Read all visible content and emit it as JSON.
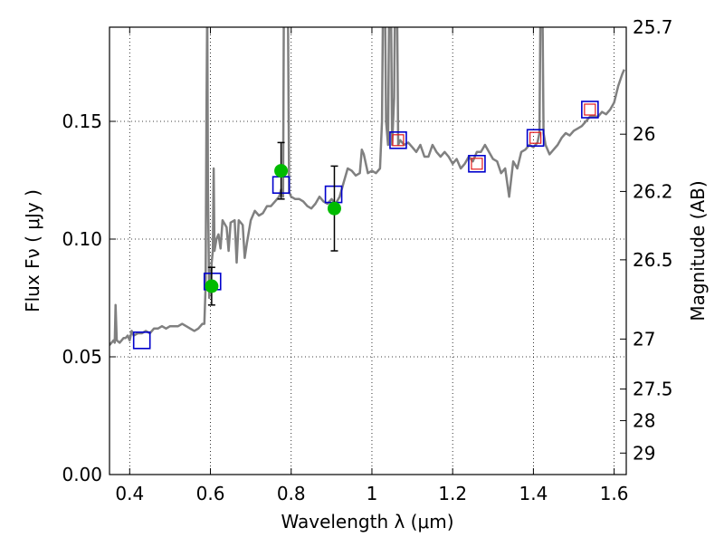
{
  "chart_data": {
    "type": "line",
    "xlabel": "Wavelength  λ (μm)",
    "ylabel": "Flux  Fν  ( μJy )",
    "y2label": "Magnitude (AB)",
    "xlim": [
      0.35,
      1.63
    ],
    "ylim": [
      0.0,
      0.19
    ],
    "xticks": [
      0.4,
      0.6,
      0.8,
      1.0,
      1.2,
      1.4,
      1.6
    ],
    "xtick_labels": [
      "0.4",
      "0.6",
      "0.8",
      "1",
      "1.2",
      "1.4",
      "1.6"
    ],
    "yticks": [
      0.0,
      0.05,
      0.1,
      0.15
    ],
    "ytick_labels": [
      "0.00",
      "0.05",
      "0.10",
      "0.15"
    ],
    "y2ticks": [
      {
        "label": "25.7",
        "mag": 25.7
      },
      {
        "label": "26",
        "mag": 26.0
      },
      {
        "label": "26.2",
        "mag": 26.2
      },
      {
        "label": "26.5",
        "mag": 26.5
      },
      {
        "label": "27",
        "mag": 27.0
      },
      {
        "label": "27.5",
        "mag": 27.5
      },
      {
        "label": "28",
        "mag": 28.0
      },
      {
        "label": "29",
        "mag": 29.0
      }
    ],
    "grid": true,
    "colors": {
      "spectrum": "#808080",
      "model_box": "#0000cc",
      "inner_box": "#e31a1c",
      "observed_point": "#00bb00",
      "errorbar": "#000000"
    },
    "series": [
      {
        "kind": "spectrum",
        "points": [
          [
            0.35,
            0.055
          ],
          [
            0.36,
            0.057
          ],
          [
            0.363,
            0.056
          ],
          [
            0.365,
            0.072
          ],
          [
            0.368,
            0.057
          ],
          [
            0.375,
            0.056
          ],
          [
            0.385,
            0.058
          ],
          [
            0.39,
            0.058
          ],
          [
            0.395,
            0.059
          ],
          [
            0.4,
            0.057
          ],
          [
            0.405,
            0.061
          ],
          [
            0.41,
            0.059
          ],
          [
            0.42,
            0.06
          ],
          [
            0.43,
            0.06
          ],
          [
            0.44,
            0.061
          ],
          [
            0.45,
            0.06
          ],
          [
            0.46,
            0.062
          ],
          [
            0.47,
            0.062
          ],
          [
            0.48,
            0.063
          ],
          [
            0.49,
            0.062
          ],
          [
            0.5,
            0.063
          ],
          [
            0.51,
            0.063
          ],
          [
            0.52,
            0.063
          ],
          [
            0.53,
            0.064
          ],
          [
            0.54,
            0.063
          ],
          [
            0.55,
            0.062
          ],
          [
            0.56,
            0.061
          ],
          [
            0.57,
            0.062
          ],
          [
            0.575,
            0.063
          ],
          [
            0.58,
            0.064
          ],
          [
            0.585,
            0.064
          ],
          [
            0.588,
            0.08
          ],
          [
            0.59,
            0.15
          ],
          [
            0.592,
            0.2
          ],
          [
            0.594,
            0.12
          ],
          [
            0.597,
            0.075
          ],
          [
            0.6,
            0.08
          ],
          [
            0.603,
            0.09
          ],
          [
            0.606,
            0.095
          ],
          [
            0.608,
            0.13
          ],
          [
            0.61,
            0.095
          ],
          [
            0.615,
            0.1
          ],
          [
            0.62,
            0.102
          ],
          [
            0.625,
            0.096
          ],
          [
            0.63,
            0.108
          ],
          [
            0.64,
            0.105
          ],
          [
            0.645,
            0.095
          ],
          [
            0.65,
            0.107
          ],
          [
            0.66,
            0.108
          ],
          [
            0.665,
            0.09
          ],
          [
            0.67,
            0.108
          ],
          [
            0.68,
            0.106
          ],
          [
            0.685,
            0.092
          ],
          [
            0.69,
            0.098
          ],
          [
            0.7,
            0.108
          ],
          [
            0.71,
            0.112
          ],
          [
            0.72,
            0.11
          ],
          [
            0.73,
            0.111
          ],
          [
            0.74,
            0.114
          ],
          [
            0.75,
            0.114
          ],
          [
            0.76,
            0.116
          ],
          [
            0.77,
            0.118
          ],
          [
            0.775,
            0.121
          ],
          [
            0.78,
            0.118
          ],
          [
            0.783,
            0.25
          ],
          [
            0.786,
            0.25
          ],
          [
            0.788,
            0.25
          ],
          [
            0.79,
            0.25
          ],
          [
            0.795,
            0.12
          ],
          [
            0.8,
            0.118
          ],
          [
            0.81,
            0.117
          ],
          [
            0.82,
            0.117
          ],
          [
            0.83,
            0.116
          ],
          [
            0.84,
            0.114
          ],
          [
            0.85,
            0.113
          ],
          [
            0.86,
            0.115
          ],
          [
            0.87,
            0.118
          ],
          [
            0.88,
            0.116
          ],
          [
            0.89,
            0.115
          ],
          [
            0.9,
            0.117
          ],
          [
            0.91,
            0.115
          ],
          [
            0.92,
            0.118
          ],
          [
            0.93,
            0.124
          ],
          [
            0.94,
            0.13
          ],
          [
            0.95,
            0.129
          ],
          [
            0.96,
            0.127
          ],
          [
            0.97,
            0.128
          ],
          [
            0.975,
            0.138
          ],
          [
            0.98,
            0.136
          ],
          [
            0.99,
            0.128
          ],
          [
            1.0,
            0.129
          ],
          [
            1.01,
            0.128
          ],
          [
            1.02,
            0.13
          ],
          [
            1.025,
            0.15
          ],
          [
            1.03,
            0.25
          ],
          [
            1.035,
            0.15
          ],
          [
            1.04,
            0.14
          ],
          [
            1.045,
            0.25
          ],
          [
            1.05,
            0.14
          ],
          [
            1.055,
            0.16
          ],
          [
            1.06,
            0.25
          ],
          [
            1.065,
            0.14
          ],
          [
            1.07,
            0.142
          ],
          [
            1.08,
            0.14
          ],
          [
            1.09,
            0.141
          ],
          [
            1.1,
            0.139
          ],
          [
            1.11,
            0.137
          ],
          [
            1.12,
            0.14
          ],
          [
            1.13,
            0.135
          ],
          [
            1.14,
            0.135
          ],
          [
            1.15,
            0.14
          ],
          [
            1.16,
            0.137
          ],
          [
            1.17,
            0.135
          ],
          [
            1.18,
            0.137
          ],
          [
            1.19,
            0.135
          ],
          [
            1.2,
            0.132
          ],
          [
            1.21,
            0.134
          ],
          [
            1.22,
            0.13
          ],
          [
            1.23,
            0.132
          ],
          [
            1.24,
            0.135
          ],
          [
            1.25,
            0.133
          ],
          [
            1.26,
            0.137
          ],
          [
            1.27,
            0.137
          ],
          [
            1.28,
            0.14
          ],
          [
            1.29,
            0.137
          ],
          [
            1.3,
            0.134
          ],
          [
            1.31,
            0.133
          ],
          [
            1.32,
            0.128
          ],
          [
            1.33,
            0.13
          ],
          [
            1.34,
            0.118
          ],
          [
            1.35,
            0.133
          ],
          [
            1.36,
            0.13
          ],
          [
            1.37,
            0.137
          ],
          [
            1.38,
            0.138
          ],
          [
            1.39,
            0.14
          ],
          [
            1.4,
            0.139
          ],
          [
            1.41,
            0.141
          ],
          [
            1.415,
            0.145
          ],
          [
            1.42,
            0.25
          ],
          [
            1.425,
            0.145
          ],
          [
            1.43,
            0.14
          ],
          [
            1.44,
            0.136
          ],
          [
            1.45,
            0.138
          ],
          [
            1.46,
            0.14
          ],
          [
            1.47,
            0.143
          ],
          [
            1.48,
            0.145
          ],
          [
            1.49,
            0.144
          ],
          [
            1.5,
            0.146
          ],
          [
            1.51,
            0.147
          ],
          [
            1.52,
            0.148
          ],
          [
            1.53,
            0.15
          ],
          [
            1.54,
            0.152
          ],
          [
            1.55,
            0.152
          ],
          [
            1.56,
            0.152
          ],
          [
            1.57,
            0.154
          ],
          [
            1.58,
            0.153
          ],
          [
            1.59,
            0.155
          ],
          [
            1.6,
            0.158
          ],
          [
            1.61,
            0.165
          ],
          [
            1.62,
            0.17
          ],
          [
            1.625,
            0.172
          ]
        ]
      },
      {
        "kind": "model_photometry",
        "points": [
          {
            "x": 0.43,
            "y": 0.057,
            "inner": false
          },
          {
            "x": 0.605,
            "y": 0.082,
            "inner": false
          },
          {
            "x": 0.775,
            "y": 0.123,
            "inner": false
          },
          {
            "x": 0.905,
            "y": 0.119,
            "inner": false
          },
          {
            "x": 1.065,
            "y": 0.142,
            "inner": true
          },
          {
            "x": 1.26,
            "y": 0.132,
            "inner": true
          },
          {
            "x": 1.405,
            "y": 0.143,
            "inner": true
          },
          {
            "x": 1.54,
            "y": 0.155,
            "inner": true
          }
        ]
      },
      {
        "kind": "observed_photometry",
        "points": [
          {
            "x": 0.603,
            "y": 0.08,
            "yerr": 0.008
          },
          {
            "x": 0.775,
            "y": 0.129,
            "yerr": 0.012
          },
          {
            "x": 0.907,
            "y": 0.113,
            "yerr": 0.018
          }
        ]
      }
    ]
  }
}
